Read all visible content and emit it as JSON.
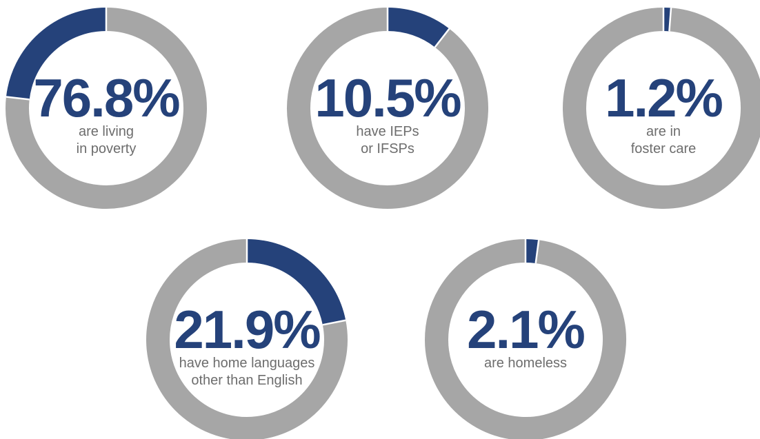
{
  "chart_data": [
    {
      "type": "donut",
      "values": [
        76.8
      ],
      "value_labels": [
        "76.8%"
      ],
      "label": [
        "are living",
        "in poverty"
      ],
      "color": "#25427a",
      "track_color": "#a6a6a6",
      "highlight": "remainder"
    },
    {
      "type": "donut",
      "values": [
        10.5
      ],
      "value_labels": [
        "10.5%"
      ],
      "label": [
        "have IEPs",
        "or IFSPs"
      ],
      "color": "#25427a",
      "track_color": "#a6a6a6",
      "highlight": "value"
    },
    {
      "type": "donut",
      "values": [
        1.2
      ],
      "value_labels": [
        "1.2%"
      ],
      "label": [
        "are in",
        "foster care"
      ],
      "color": "#25427a",
      "track_color": "#a6a6a6",
      "highlight": "value"
    },
    {
      "type": "donut",
      "values": [
        21.9
      ],
      "value_labels": [
        "21.9%"
      ],
      "label": [
        "have home languages",
        "other than English"
      ],
      "color": "#25427a",
      "track_color": "#a6a6a6",
      "highlight": "value"
    },
    {
      "type": "donut",
      "values": [
        2.1
      ],
      "value_labels": [
        "2.1%"
      ],
      "label": [
        "are homeless"
      ],
      "color": "#25427a",
      "track_color": "#a6a6a6",
      "highlight": "value"
    }
  ]
}
